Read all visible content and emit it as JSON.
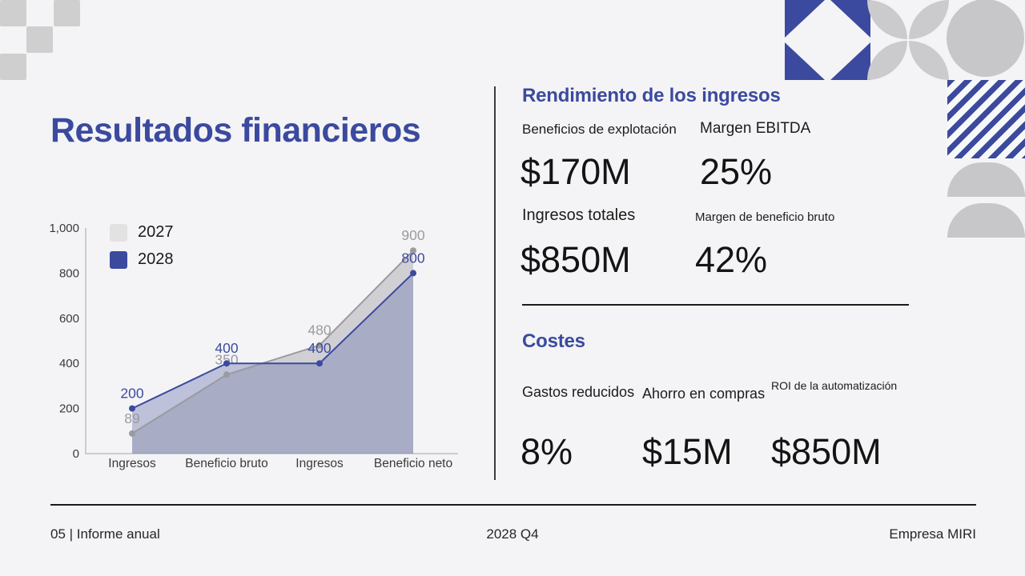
{
  "slide": {
    "title": "Resultados financieros",
    "colors": {
      "background": "#f4f4f6",
      "accent_blue": "#3b4a9e",
      "decor_gray": "#c7c7c9",
      "text_dark": "#141414"
    }
  },
  "chart_data": {
    "type": "line",
    "categories": [
      "Ingresos",
      "Beneficio bruto",
      "Ingresos",
      "Beneficio neto"
    ],
    "series": [
      {
        "name": "2027",
        "values": [
          89,
          350,
          480,
          900
        ],
        "color": "#9a9aa0",
        "fill": "rgba(154,154,162,0.40)",
        "swatch": "#e2e2e2"
      },
      {
        "name": "2028",
        "values": [
          200,
          400,
          400,
          800
        ],
        "color": "#3b4a9e",
        "fill": "rgba(112,121,176,0.42)",
        "swatch": "#3b4a9e"
      }
    ],
    "ylim": [
      0,
      1000
    ],
    "yticks": [
      0,
      200,
      400,
      600,
      800,
      1000
    ],
    "area": true,
    "point_labels": true,
    "grid": false,
    "legend_position": "top-left",
    "xlabel": "",
    "ylabel": "",
    "title": ""
  },
  "revenue_section": {
    "heading": "Rendimiento de los ingresos",
    "metrics": [
      {
        "label": "Beneficios de explotación",
        "value": "$170M"
      },
      {
        "label": "Margen EBITDA",
        "value": "25%"
      },
      {
        "label": "Ingresos totales",
        "value": "$850M"
      },
      {
        "label": "Margen de beneficio bruto",
        "value": "42%"
      }
    ]
  },
  "costs_section": {
    "heading": "Costes",
    "metrics": [
      {
        "label": "Gastos reducidos",
        "value": "8%"
      },
      {
        "label": "Ahorro en compras",
        "value": "$15M"
      },
      {
        "label": "ROI de la automatización",
        "value": "$850M"
      }
    ]
  },
  "footer": {
    "left": "05 | Informe anual",
    "center": "2028 Q4",
    "right": "Empresa MIRI"
  }
}
